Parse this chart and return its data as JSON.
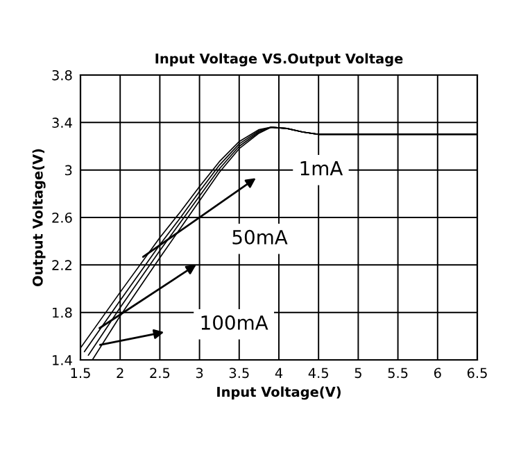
{
  "chart_data": {
    "type": "line",
    "title": "Input Voltage VS.Output Voltage",
    "xlabel": "Input Voltage(V)",
    "ylabel": "Output Voltage(V)",
    "series": [
      {
        "color": "#000000",
        "x": [
          1.5,
          2.0,
          2.5,
          2.75,
          3.0,
          3.25,
          3.5,
          3.75,
          3.9,
          4.1,
          4.3,
          4.5,
          5.0,
          6.5
        ],
        "values": [
          1.5,
          1.97,
          2.43,
          2.64,
          2.86,
          3.07,
          3.24,
          3.34,
          3.36,
          3.35,
          3.32,
          3.3,
          3.3,
          3.3
        ]
      },
      {
        "color": "#000000",
        "x": [
          1.55,
          2.0,
          2.5,
          2.75,
          3.0,
          3.25,
          3.5,
          3.75,
          3.9,
          4.1,
          4.3,
          4.5,
          5.0,
          6.5
        ],
        "values": [
          1.47,
          1.9,
          2.37,
          2.59,
          2.82,
          3.04,
          3.22,
          3.33,
          3.36,
          3.35,
          3.32,
          3.3,
          3.3,
          3.3
        ]
      },
      {
        "color": "#000000",
        "x": [
          1.6,
          2.0,
          2.5,
          2.75,
          3.0,
          3.25,
          3.5,
          3.75,
          3.9,
          4.1,
          4.3,
          4.5,
          5.0,
          6.5
        ],
        "values": [
          1.44,
          1.84,
          2.32,
          2.55,
          2.78,
          3.01,
          3.2,
          3.32,
          3.36,
          3.35,
          3.32,
          3.3,
          3.3,
          3.3
        ]
      },
      {
        "color": "#000000",
        "x": [
          1.65,
          2.0,
          2.5,
          2.75,
          3.0,
          3.25,
          3.5,
          3.75,
          3.9,
          4.1,
          4.3,
          4.5,
          5.0,
          6.5
        ],
        "values": [
          1.4,
          1.77,
          2.26,
          2.5,
          2.74,
          2.98,
          3.18,
          3.31,
          3.36,
          3.35,
          3.32,
          3.3,
          3.3,
          3.3
        ]
      }
    ],
    "annotations": [
      "1mA",
      "50mA",
      "100mA"
    ],
    "xlim": [
      1.5,
      6.5
    ],
    "xticks": [
      1.5,
      2,
      2.5,
      3,
      3.5,
      4,
      4.5,
      5,
      5.5,
      6,
      6.5
    ],
    "ylim": [
      1.4,
      3.8
    ],
    "yticks": [
      1.4,
      1.8,
      2.2,
      2.6,
      3,
      3.4,
      3.8
    ],
    "grid": true,
    "legend": false,
    "marker": "none",
    "line_style": "solid"
  }
}
